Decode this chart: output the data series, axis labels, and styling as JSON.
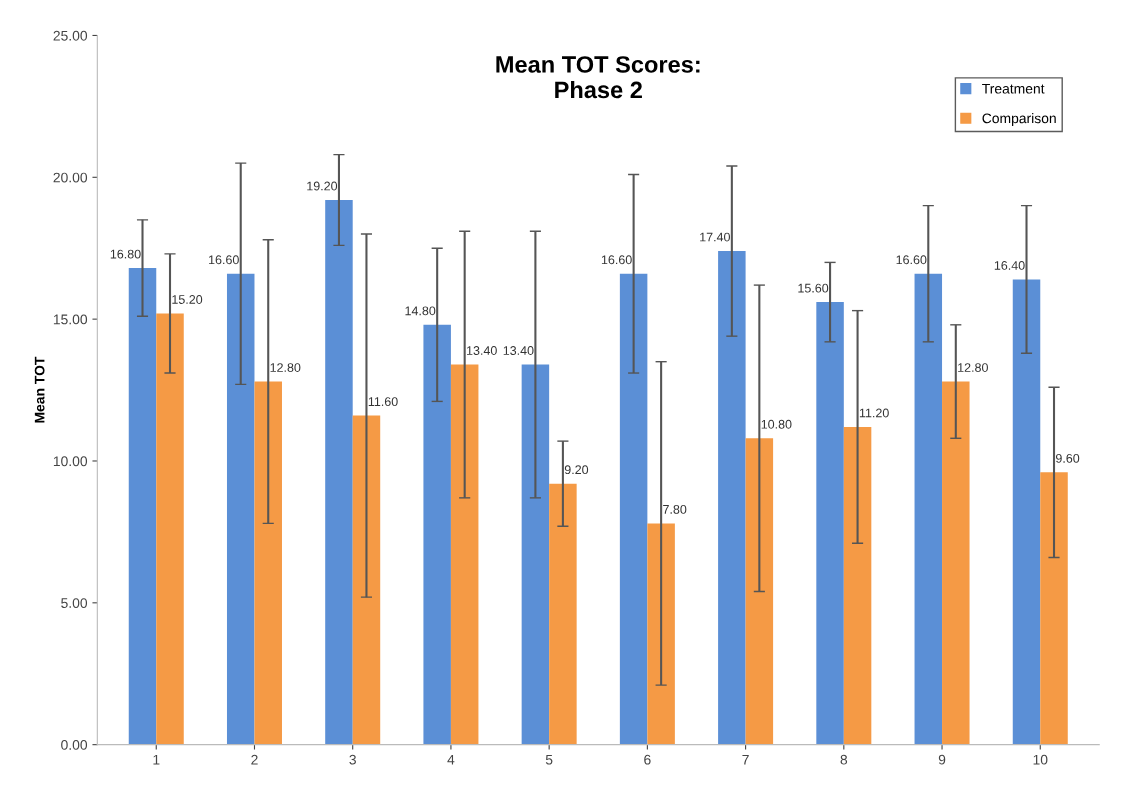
{
  "chart_data": {
    "type": "bar",
    "title": "Mean TOT Scores:\nPhase 2",
    "ylabel": "Mean TOT",
    "categories": [
      "1",
      "2",
      "3",
      "4",
      "5",
      "6",
      "7",
      "8",
      "9",
      "10"
    ],
    "series": [
      {
        "name": "Treatment",
        "color": "#5b8fd6",
        "values": [
          16.8,
          16.6,
          19.2,
          14.8,
          13.4,
          16.6,
          17.4,
          15.6,
          16.6,
          16.4
        ],
        "errors": [
          1.7,
          3.9,
          1.6,
          2.7,
          4.7,
          3.5,
          3.0,
          1.4,
          2.4,
          2.6
        ],
        "value_labels": [
          "16.80",
          "16.60",
          "19.20",
          "14.80",
          "13.40",
          "16.60",
          "17.40",
          "15.60",
          "16.60",
          "16.40"
        ]
      },
      {
        "name": "Comparison",
        "color": "#f59a45",
        "values": [
          15.2,
          12.8,
          11.6,
          13.4,
          9.2,
          7.8,
          10.8,
          11.2,
          12.8,
          9.6
        ],
        "errors": [
          2.1,
          5.0,
          6.4,
          4.7,
          1.5,
          5.7,
          5.4,
          4.1,
          2.0,
          3.0
        ],
        "value_labels": [
          "15.20",
          "12.80",
          "11.60",
          "13.40",
          "9.20",
          "7.80",
          "10.80",
          "11.20",
          "12.80",
          "9.60"
        ]
      }
    ],
    "ylim": [
      0,
      25
    ],
    "yticks": [
      {
        "value": 0,
        "label": "0.00"
      },
      {
        "value": 5,
        "label": "5.00"
      },
      {
        "value": 10,
        "label": "10.00"
      },
      {
        "value": 15,
        "label": "15.00"
      },
      {
        "value": 20,
        "label": "20.00"
      },
      {
        "value": 25,
        "label": "25.00"
      }
    ],
    "grid": false,
    "legend": "top right"
  }
}
